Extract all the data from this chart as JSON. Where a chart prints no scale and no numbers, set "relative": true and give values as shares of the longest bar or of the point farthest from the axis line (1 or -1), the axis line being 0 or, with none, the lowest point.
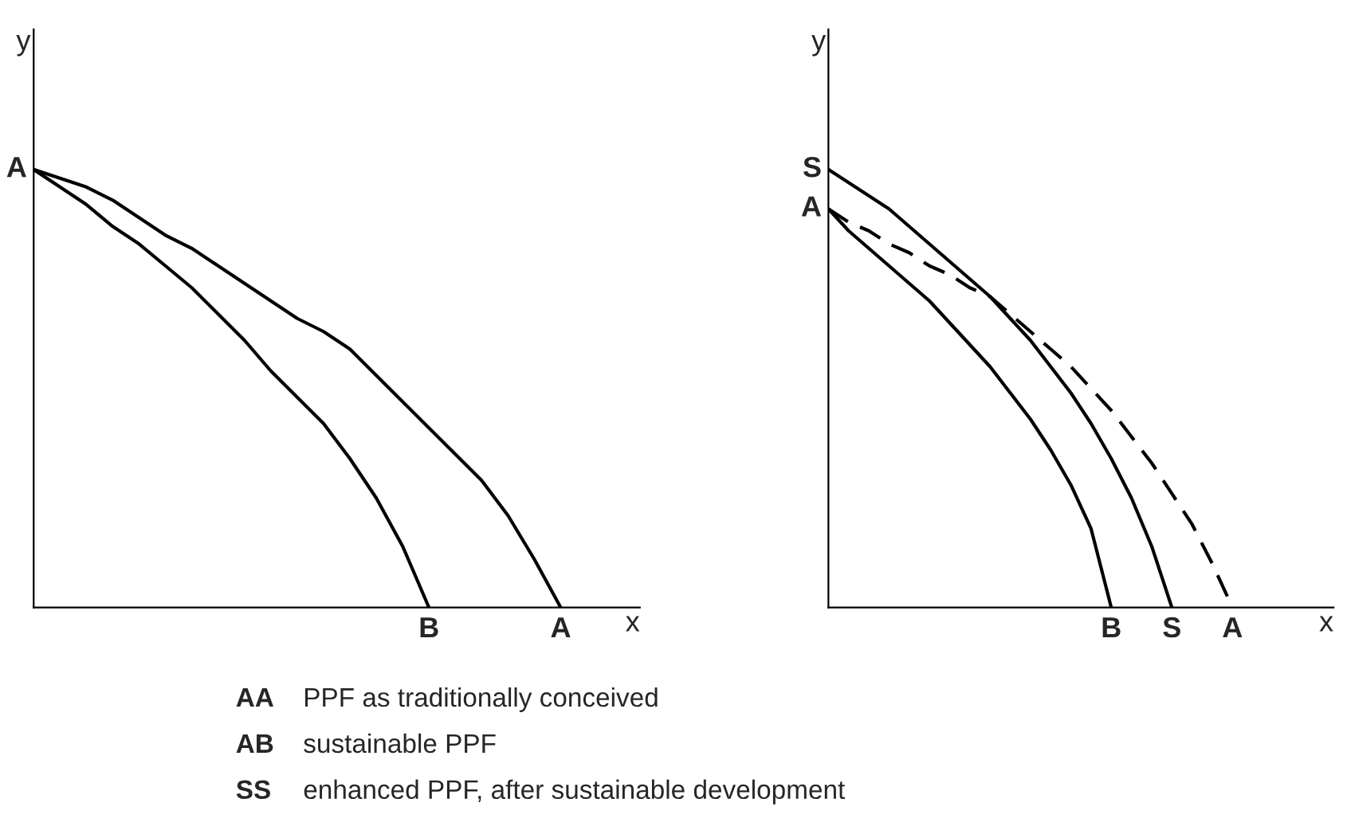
{
  "chart_data": [
    {
      "type": "line",
      "relative": true,
      "xlabel": "x",
      "ylabel": "y",
      "marker": "none",
      "line_style": "solid",
      "categories": [
        null,
        null,
        null,
        null,
        null,
        null,
        null,
        null,
        null,
        null,
        null,
        null,
        null,
        null,
        null,
        "B",
        null,
        null,
        null,
        null,
        "A",
        null,
        null,
        null
      ],
      "series": [
        {
          "color": "#000000",
          "values": [
            1,
            0.98,
            0.96,
            0.93,
            0.89,
            0.85,
            0.82,
            0.78,
            0.74,
            0.7,
            0.66,
            0.63,
            0.59,
            0.53,
            0.47,
            0.41,
            0.35,
            0.29,
            0.21,
            0.11,
            0,
            null,
            null,
            null
          ]
        },
        {
          "color": "#000000",
          "values": [
            1,
            0.96,
            0.92,
            0.87,
            0.83,
            0.78,
            0.73,
            0.67,
            0.61,
            0.54,
            0.48,
            0.42,
            0.34,
            0.25,
            0.14,
            0,
            null,
            null,
            null,
            null,
            null,
            null,
            null,
            null
          ]
        }
      ],
      "annotations": [
        "A",
        "AA PPF as traditionally conceived",
        "AB sustainable PPF",
        "SS enhanced PPF, after sustainable development"
      ]
    },
    {
      "type": "line",
      "relative": true,
      "xlabel": "x",
      "ylabel": "y",
      "marker": "none",
      "categories": [
        null,
        null,
        null,
        null,
        null,
        null,
        null,
        null,
        null,
        null,
        null,
        null,
        null,
        null,
        "B",
        null,
        null,
        "S",
        null,
        null,
        "A",
        null,
        null,
        null,
        null,
        null
      ],
      "series": [
        {
          "color": "#000000",
          "line_style": "dashed",
          "values": [
            0.91,
            0.88,
            0.86,
            0.83,
            0.81,
            0.78,
            0.76,
            0.73,
            0.71,
            0.67,
            0.63,
            0.59,
            0.55,
            0.5,
            0.45,
            0.39,
            0.33,
            0.26,
            0.19,
            0.1,
            0,
            null,
            null,
            null,
            null,
            null
          ]
        },
        {
          "color": "#000000",
          "line_style": "solid",
          "values": [
            0.91,
            0.86,
            0.82,
            0.78,
            0.74,
            0.7,
            0.65,
            0.6,
            0.55,
            0.49,
            0.43,
            0.36,
            0.28,
            0.18,
            0,
            null,
            null,
            null,
            null,
            null,
            null,
            null,
            null,
            null,
            null,
            null
          ]
        },
        {
          "color": "#000000",
          "line_style": "solid",
          "values": [
            1,
            0.97,
            0.94,
            0.91,
            0.87,
            0.83,
            0.79,
            0.75,
            0.71,
            0.66,
            0.61,
            0.55,
            0.49,
            0.42,
            0.34,
            0.25,
            0.14,
            0,
            null,
            null,
            null,
            null,
            null,
            null,
            null,
            null
          ]
        }
      ],
      "annotations": [
        "S",
        "A"
      ]
    }
  ]
}
